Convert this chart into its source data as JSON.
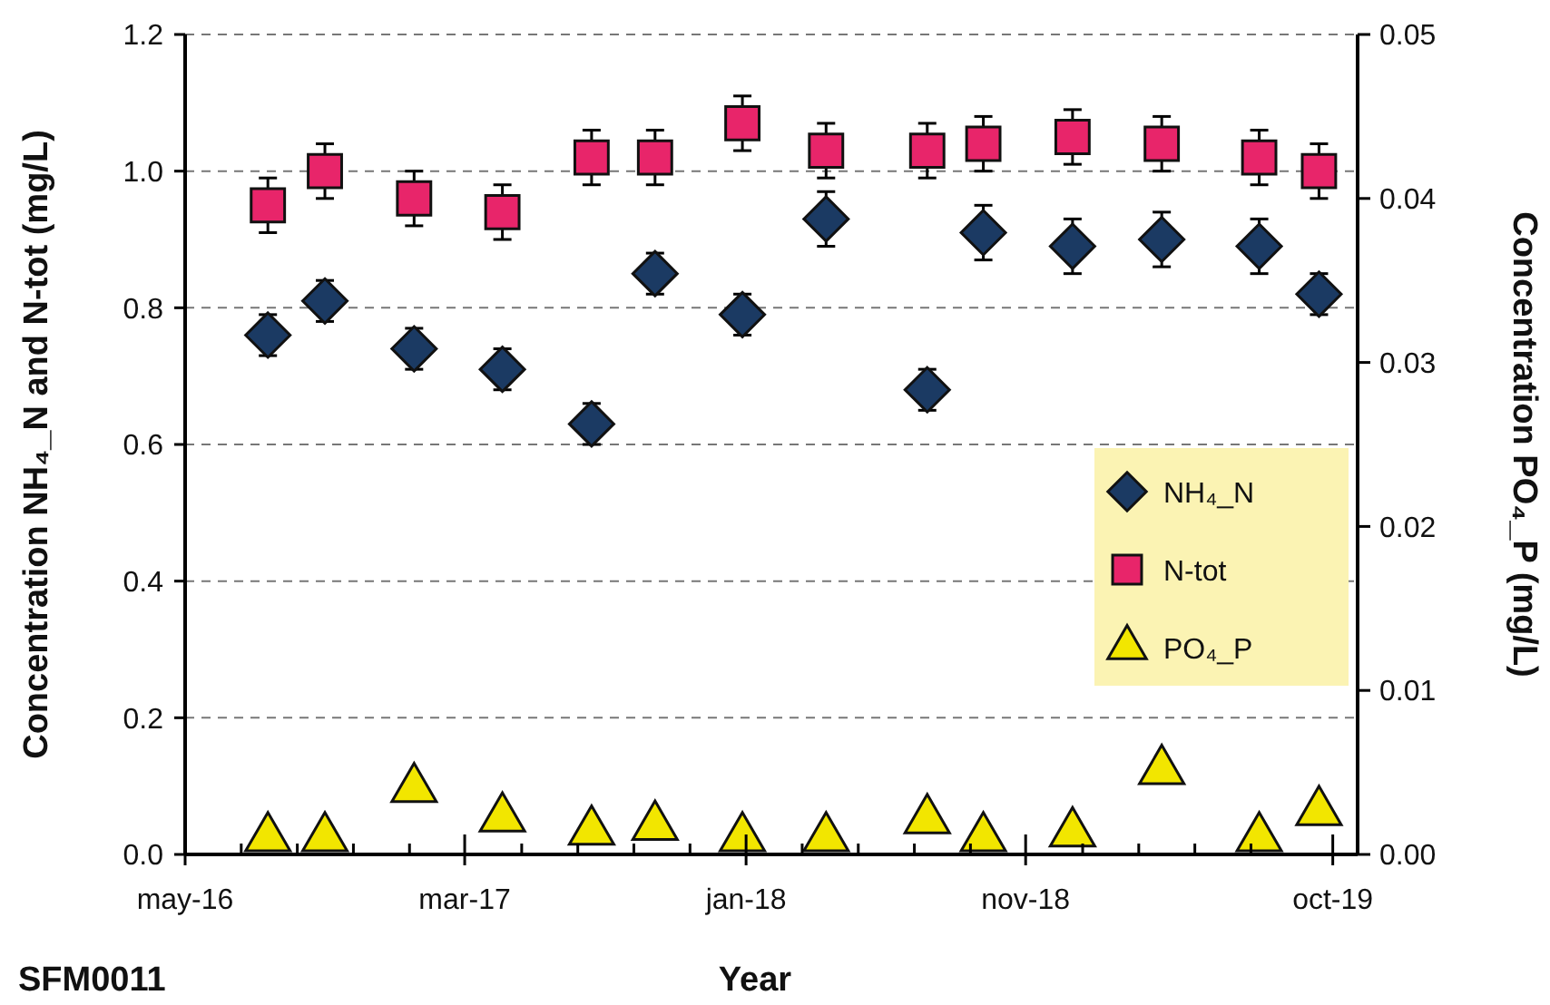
{
  "chart_data": {
    "type": "scatter",
    "xlabel": "Year",
    "ylabel": "Concentration NH₄_N and N-tot (mg/L)",
    "y2label": "Concentration PO₄_P (mg/L)",
    "annotations": [
      "SFM0011"
    ],
    "x": [
      "2016-07-30",
      "2016-09-30",
      "2017-01-05",
      "2017-04-11",
      "2017-07-17",
      "2017-09-24",
      "2017-12-28",
      "2018-03-29",
      "2018-07-17",
      "2018-09-16",
      "2018-12-22",
      "2019-03-29",
      "2019-07-13",
      "2019-09-16"
    ],
    "xlim": [
      "2016-05-01",
      "2019-10-28"
    ],
    "xticks": [
      {
        "value": "2016-05-01",
        "label": "may-16"
      },
      {
        "value": "2016-07-01",
        "label": null
      },
      {
        "value": "2016-08-31",
        "label": null
      },
      {
        "value": "2016-10-31",
        "label": null
      },
      {
        "value": "2016-12-31",
        "label": null
      },
      {
        "value": "2017-03-01",
        "label": "mar-17"
      },
      {
        "value": "2017-05-02",
        "label": null
      },
      {
        "value": "2017-07-02",
        "label": null
      },
      {
        "value": "2017-09-01",
        "label": null
      },
      {
        "value": "2017-11-01",
        "label": null
      },
      {
        "value": "2018-01-01",
        "label": "jan-18"
      },
      {
        "value": "2018-03-03",
        "label": null
      },
      {
        "value": "2018-05-03",
        "label": null
      },
      {
        "value": "2018-07-03",
        "label": null
      },
      {
        "value": "2018-09-02",
        "label": null
      },
      {
        "value": "2018-11-01",
        "label": "nov-18"
      },
      {
        "value": "2019-01-02",
        "label": null
      },
      {
        "value": "2019-03-04",
        "label": null
      },
      {
        "value": "2019-05-04",
        "label": null
      },
      {
        "value": "2019-07-04",
        "label": null
      },
      {
        "value": "2019-10-01",
        "label": "oct-19"
      }
    ],
    "ylim": [
      0,
      1.2
    ],
    "yticks": [
      {
        "value": 0,
        "label": "0.0"
      },
      {
        "value": 0.2,
        "label": "0.2"
      },
      {
        "value": 0.4,
        "label": "0.4"
      },
      {
        "value": 0.6,
        "label": "0.6"
      },
      {
        "value": 0.8,
        "label": "0.8"
      },
      {
        "value": 1,
        "label": "1.0"
      },
      {
        "value": 1.2,
        "label": "1.2"
      }
    ],
    "y2lim": [
      0,
      0.05
    ],
    "y2ticks": [
      {
        "value": 0,
        "label": "0.00"
      },
      0.01,
      0.02,
      0.03,
      0.04,
      0.05
    ],
    "grid": "y",
    "legend": "right",
    "series": [
      {
        "name": "NH₄_N",
        "color": "#1b3a63",
        "marker": "diamond",
        "values": [
          0.76,
          0.81,
          0.74,
          0.71,
          0.63,
          0.85,
          0.79,
          0.93,
          0.68,
          0.91,
          0.89,
          0.9,
          0.89,
          0.82
        ],
        "errors": [
          0.03,
          0.03,
          0.03,
          0.03,
          0.03,
          0.03,
          0.03,
          0.04,
          0.03,
          0.04,
          0.04,
          0.04,
          0.04,
          0.03
        ]
      },
      {
        "name": "N-tot",
        "color": "#e8256a",
        "marker": "square",
        "values": [
          0.95,
          1.0,
          0.96,
          0.94,
          1.02,
          1.02,
          1.07,
          1.03,
          1.03,
          1.04,
          1.05,
          1.04,
          1.02,
          1.0
        ],
        "errors": [
          0.04,
          0.04,
          0.04,
          0.04,
          0.04,
          0.04,
          0.04,
          0.04,
          0.04,
          0.04,
          0.04,
          0.04,
          0.04,
          0.04
        ]
      },
      {
        "name": "PO₄_P",
        "color": "#f2e600",
        "marker": "triangle",
        "axis": "y2",
        "values": [
          0.001,
          0.001,
          0.004,
          0.0022,
          0.0014,
          0.0017,
          0.001,
          0.001,
          0.0021,
          0.001,
          0.0013,
          0.0051,
          0.001,
          0.0026
        ]
      }
    ]
  }
}
